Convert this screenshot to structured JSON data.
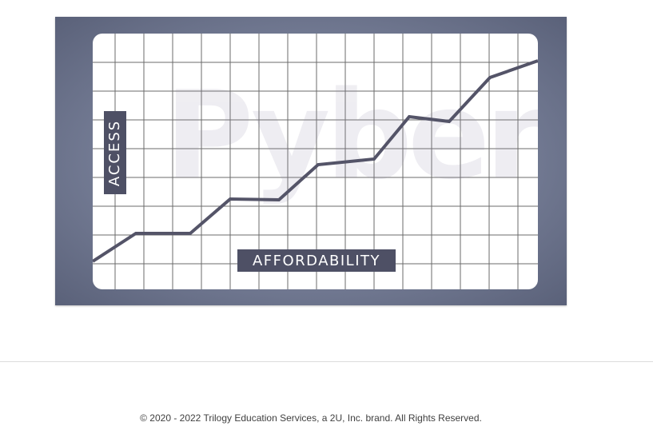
{
  "hero": {
    "watermark": "Pyber",
    "y_label": "ACCESS",
    "x_label": "AFFORDABILITY",
    "colors": {
      "frame": "#6b7289",
      "line": "#545468",
      "label_bg": "#4e5065",
      "grid": "#3a3a3a"
    }
  },
  "footer": {
    "copyright": "© 2020 - 2022 Trilogy Education Services, a 2U, Inc. brand. All Rights Reserved."
  }
}
